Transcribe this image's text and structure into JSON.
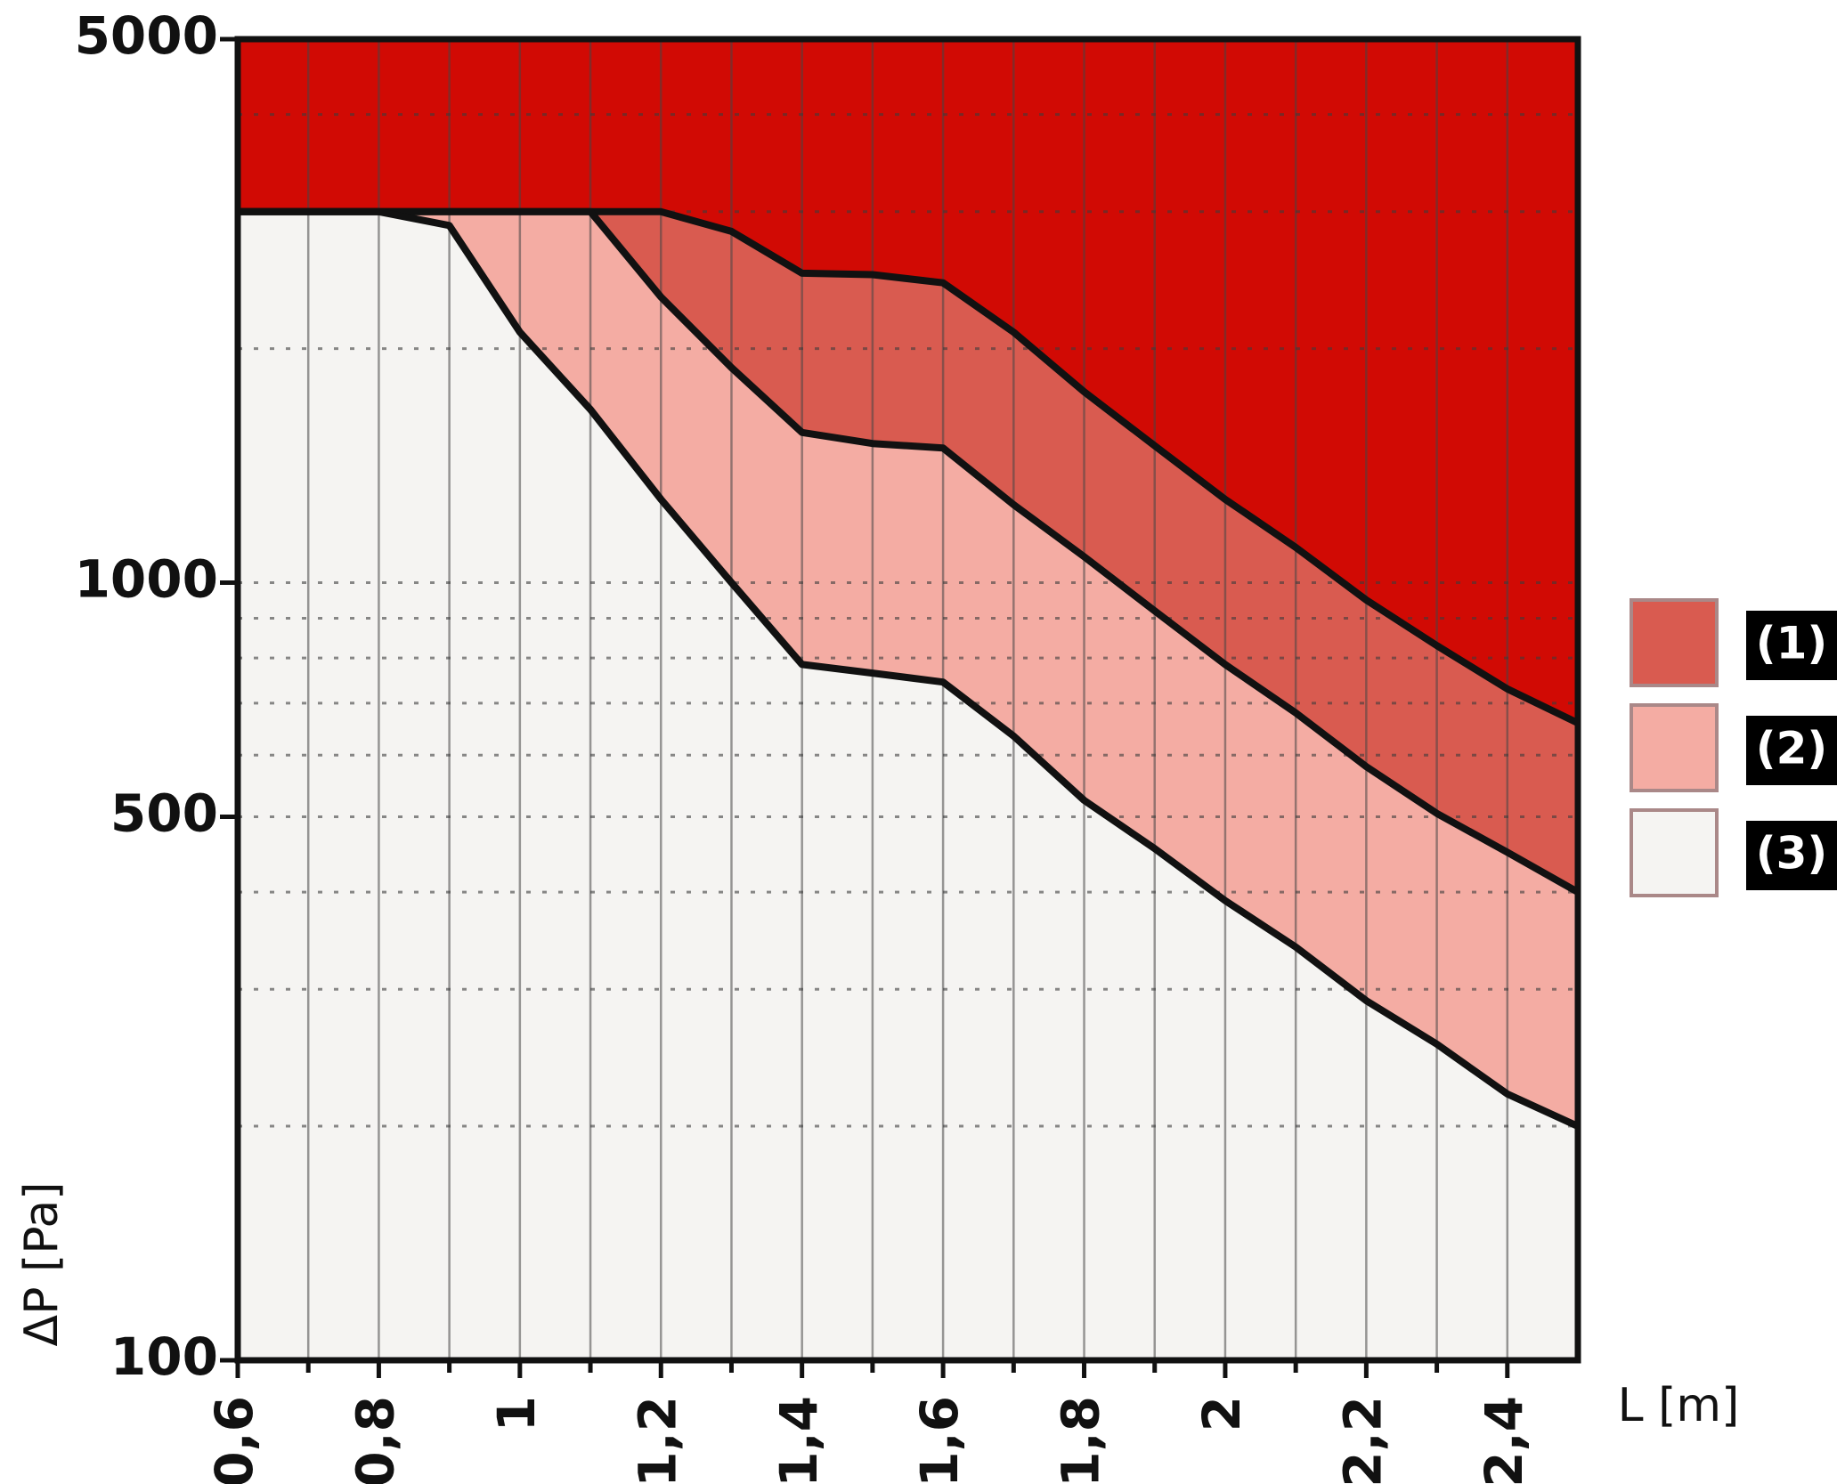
{
  "chart_data": {
    "type": "zones",
    "x_label": "L [m]",
    "y_label": "ΔP [Pa]",
    "x": [
      0.6,
      0.7,
      0.8,
      0.9,
      1.0,
      1.1,
      1.2,
      1.3,
      1.4,
      1.5,
      1.6,
      1.7,
      1.8,
      1.9,
      2.0,
      2.1,
      2.2,
      2.3,
      2.4,
      2.5
    ],
    "series": [
      {
        "name": "(1)",
        "color": "#d95b50",
        "values": [
          3000,
          3000,
          3000,
          3000,
          3000,
          3000,
          3000,
          2830,
          2500,
          2490,
          2430,
          2100,
          1760,
          1500,
          1280,
          1110,
          950,
          830,
          730,
          660
        ]
      },
      {
        "name": "(2)",
        "color": "#f4aca3",
        "values": [
          3000,
          3000,
          3000,
          3000,
          3000,
          3000,
          2330,
          1890,
          1560,
          1510,
          1490,
          1260,
          1080,
          920,
          785,
          680,
          580,
          505,
          450,
          400
        ]
      },
      {
        "name": "(3)",
        "color": "#f5f4f2",
        "values": [
          3000,
          3000,
          3000,
          2880,
          2100,
          1670,
          1280,
          1000,
          785,
          765,
          745,
          635,
          525,
          455,
          390,
          340,
          290,
          255,
          220,
          200
        ]
      }
    ],
    "above_color": "#d10a04",
    "xlim": [
      0.6,
      2.5
    ],
    "xticks": [
      {
        "value": 0.6,
        "label": "0,6"
      },
      {
        "value": 0.8,
        "label": "0,8"
      },
      1,
      {
        "value": 1.2,
        "label": "1,2"
      },
      {
        "value": 1.4,
        "label": "1,4"
      },
      {
        "value": 1.6,
        "label": "1,6"
      },
      {
        "value": 1.8,
        "label": "1,8"
      },
      2,
      {
        "value": 2.2,
        "label": "2,2"
      },
      {
        "value": 2.4,
        "label": "2,4"
      }
    ],
    "x_grid": [
      0.7,
      0.9,
      1.1,
      1.3,
      1.5,
      1.7,
      1.9,
      2.1,
      2.3
    ],
    "ylim": [
      100,
      5000
    ],
    "yticks": [
      100,
      500,
      1000,
      5000
    ],
    "y_minor_grid": [
      200,
      300,
      400,
      600,
      700,
      800,
      900,
      2000,
      3000,
      4000
    ],
    "log_y": true,
    "legend": "right"
  }
}
